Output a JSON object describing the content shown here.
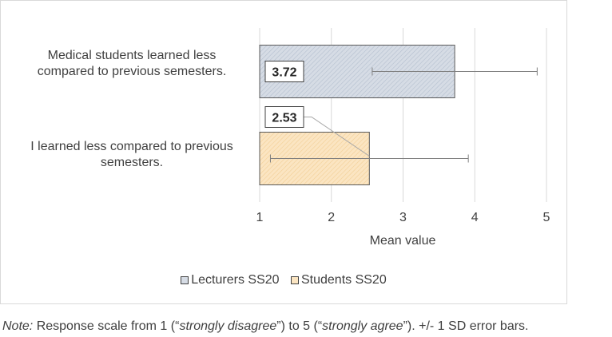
{
  "chart_data": {
    "type": "bar",
    "orientation": "horizontal",
    "categories": [
      "Medical students learned less compared to previous semesters.",
      "I learned less compared to previous semesters."
    ],
    "series": [
      {
        "name": "Lecturers SS20",
        "values": [
          3.72,
          null
        ],
        "error_plus_minus": [
          1.15,
          null
        ],
        "color": "#d6dce5"
      },
      {
        "name": "Students SS20",
        "values": [
          null,
          2.53
        ],
        "error_plus_minus": [
          null,
          1.38
        ],
        "color": "#fbe5c2"
      }
    ],
    "data_labels": [
      "3.72",
      "2.53"
    ],
    "xlabel": "Mean value",
    "xlim": [
      1,
      5
    ],
    "x_ticks": [
      "1",
      "2",
      "3",
      "4",
      "5"
    ],
    "grid": true,
    "legend_position": "bottom"
  },
  "labels": {
    "cat1_line1": "Medical students learned less",
    "cat1_line2": "compared to previous semesters.",
    "cat2_line1": "I learned less compared to previous",
    "cat2_line2": "semesters."
  },
  "note": {
    "prefix": "Note:",
    "t1": " Response scale from 1 (“",
    "i1": "strongly disagree",
    "t2": "”) to 5 (“",
    "i2": "strongly agree",
    "t3": "”). +/- 1 SD error bars."
  }
}
